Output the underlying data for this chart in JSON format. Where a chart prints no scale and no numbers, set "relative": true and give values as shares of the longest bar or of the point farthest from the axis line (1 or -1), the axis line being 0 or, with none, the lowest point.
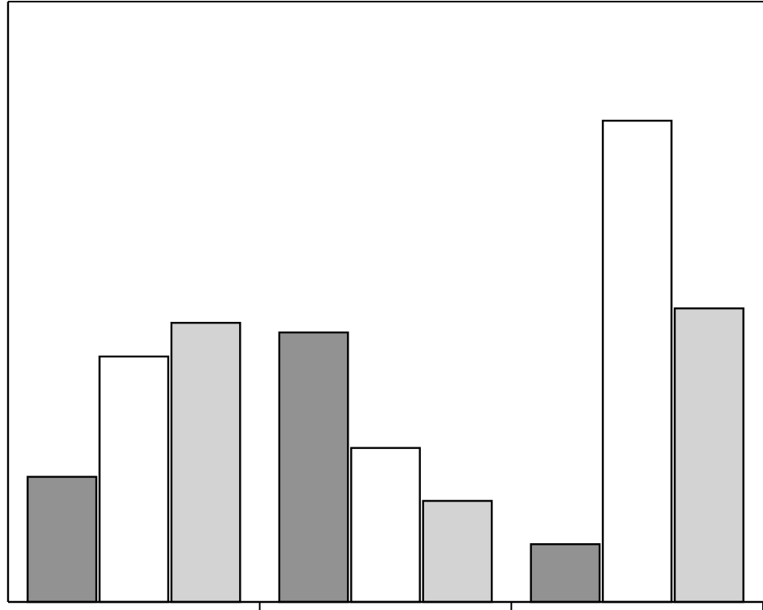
{
  "chart_data": {
    "type": "bar",
    "relative": true,
    "categories": [
      null,
      null,
      null
    ],
    "series": [
      {
        "color": "#929292",
        "values": [
          0.26,
          0.56,
          0.12
        ]
      },
      {
        "color": "#ffffff",
        "values": [
          0.51,
          0.32,
          1
        ]
      },
      {
        "color": "#d3d3d3",
        "values": [
          0.58,
          0.21,
          0.61
        ]
      }
    ]
  }
}
